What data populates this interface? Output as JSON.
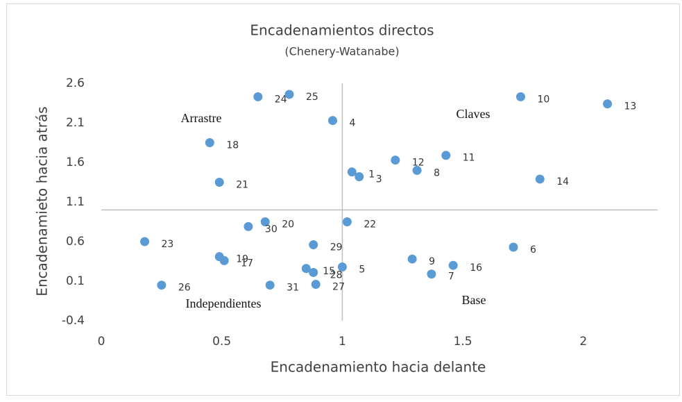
{
  "chart_data": {
    "type": "scatter",
    "title": "Encadenamientos directos",
    "subtitle": "(Chenery-Watanabe)",
    "x_label": "Encadenamiento hacia delante",
    "y_label": "Encadenamieto hacia atrás",
    "annotations": [
      "Arrastre",
      "Claves",
      "Independientes",
      "Base"
    ],
    "xlim": [
      0,
      2.3
    ],
    "ylim": [
      -0.4,
      2.6
    ],
    "xticks": [
      0,
      0.5,
      1,
      1.5,
      2
    ],
    "yticks": [
      2.6,
      2.1,
      1.6,
      1.1,
      0.6,
      0.1,
      -0.4
    ],
    "reference_x": 1,
    "reference_y": 1,
    "color": "#5b9bd5",
    "labels": [
      "24",
      "25",
      "4",
      "10",
      "13",
      "18",
      "11",
      "12",
      "8",
      "1",
      "3",
      "14",
      "21",
      "20",
      "30",
      "22",
      "23",
      "29",
      "6",
      "19",
      "17",
      "9",
      "16",
      "15",
      "5",
      "28",
      "7",
      "26",
      "31",
      "27"
    ],
    "x": [
      0.65,
      0.78,
      0.96,
      1.74,
      2.1,
      0.45,
      1.43,
      1.22,
      1.31,
      1.04,
      1.07,
      1.82,
      0.49,
      0.68,
      0.61,
      1.02,
      0.18,
      0.88,
      1.71,
      0.49,
      0.51,
      1.29,
      1.46,
      0.85,
      1.0,
      0.88,
      1.37,
      0.25,
      0.7,
      0.89
    ],
    "values": [
      2.43,
      2.46,
      2.13,
      2.43,
      2.34,
      1.85,
      1.69,
      1.63,
      1.5,
      1.48,
      1.42,
      1.39,
      1.35,
      0.85,
      0.79,
      0.85,
      0.6,
      0.56,
      0.53,
      0.41,
      0.36,
      0.38,
      0.3,
      0.26,
      0.28,
      0.21,
      0.19,
      0.05,
      0.05,
      0.06
    ]
  }
}
